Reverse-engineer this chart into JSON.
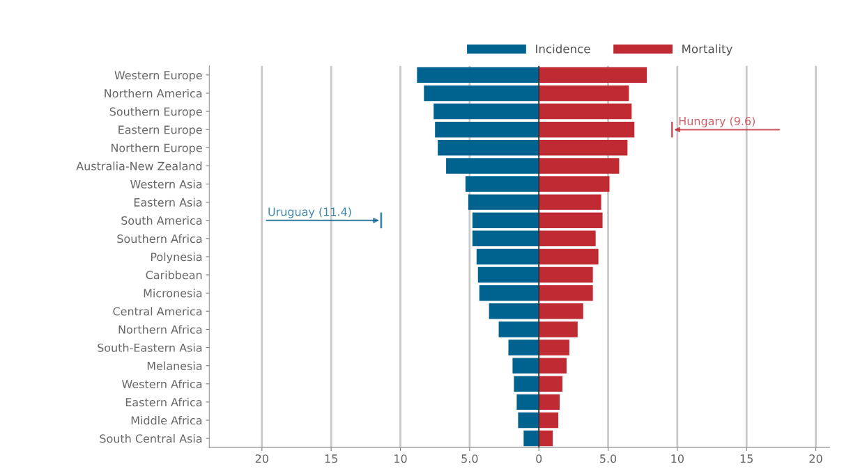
{
  "chart_data": {
    "type": "bar",
    "orientation": "horizontal",
    "categories": [
      "Western Europe",
      "Northern America",
      "Southern Europe",
      "Eastern Europe",
      "Northern Europe",
      "Australia-New Zealand",
      "Western Asia",
      "Eastern Asia",
      "South America",
      "Southern Africa",
      "Polynesia",
      "Caribbean",
      "Micronesia",
      "Central America",
      "Northern Africa",
      "South-Eastern Asia",
      "Melanesia",
      "Western Africa",
      "Eastern Africa",
      "Middle Africa",
      "South Central Asia"
    ],
    "series": [
      {
        "name": "Incidence",
        "color": "#00628f",
        "values": [
          -8.8,
          -8.3,
          -7.6,
          -7.5,
          -7.3,
          -6.7,
          -5.3,
          -5.1,
          -4.8,
          -4.8,
          -4.5,
          -4.4,
          -4.3,
          -3.6,
          -2.9,
          -2.2,
          -1.9,
          -1.8,
          -1.6,
          -1.5,
          -1.1
        ]
      },
      {
        "name": "Mortality",
        "color": "#bf2a33",
        "values": [
          7.8,
          6.5,
          6.7,
          6.9,
          6.4,
          5.8,
          5.1,
          4.5,
          4.6,
          4.1,
          4.3,
          3.9,
          3.9,
          3.2,
          2.8,
          2.2,
          2.0,
          1.7,
          1.5,
          1.4,
          1.0
        ]
      }
    ],
    "xlim": [
      -23.8,
      21
    ],
    "xticks": [
      {
        "value": -20,
        "label": "20"
      },
      {
        "value": -15,
        "label": "15"
      },
      {
        "value": -10,
        "label": "10"
      },
      {
        "value": -5,
        "label": "5.0"
      },
      0,
      {
        "value": 5,
        "label": "5.0"
      },
      10,
      15,
      20
    ],
    "grid": "x",
    "legend": "top",
    "stacked": true,
    "annotations": [
      "Uruguay (11.4)",
      "Hungary (9.6)"
    ]
  }
}
